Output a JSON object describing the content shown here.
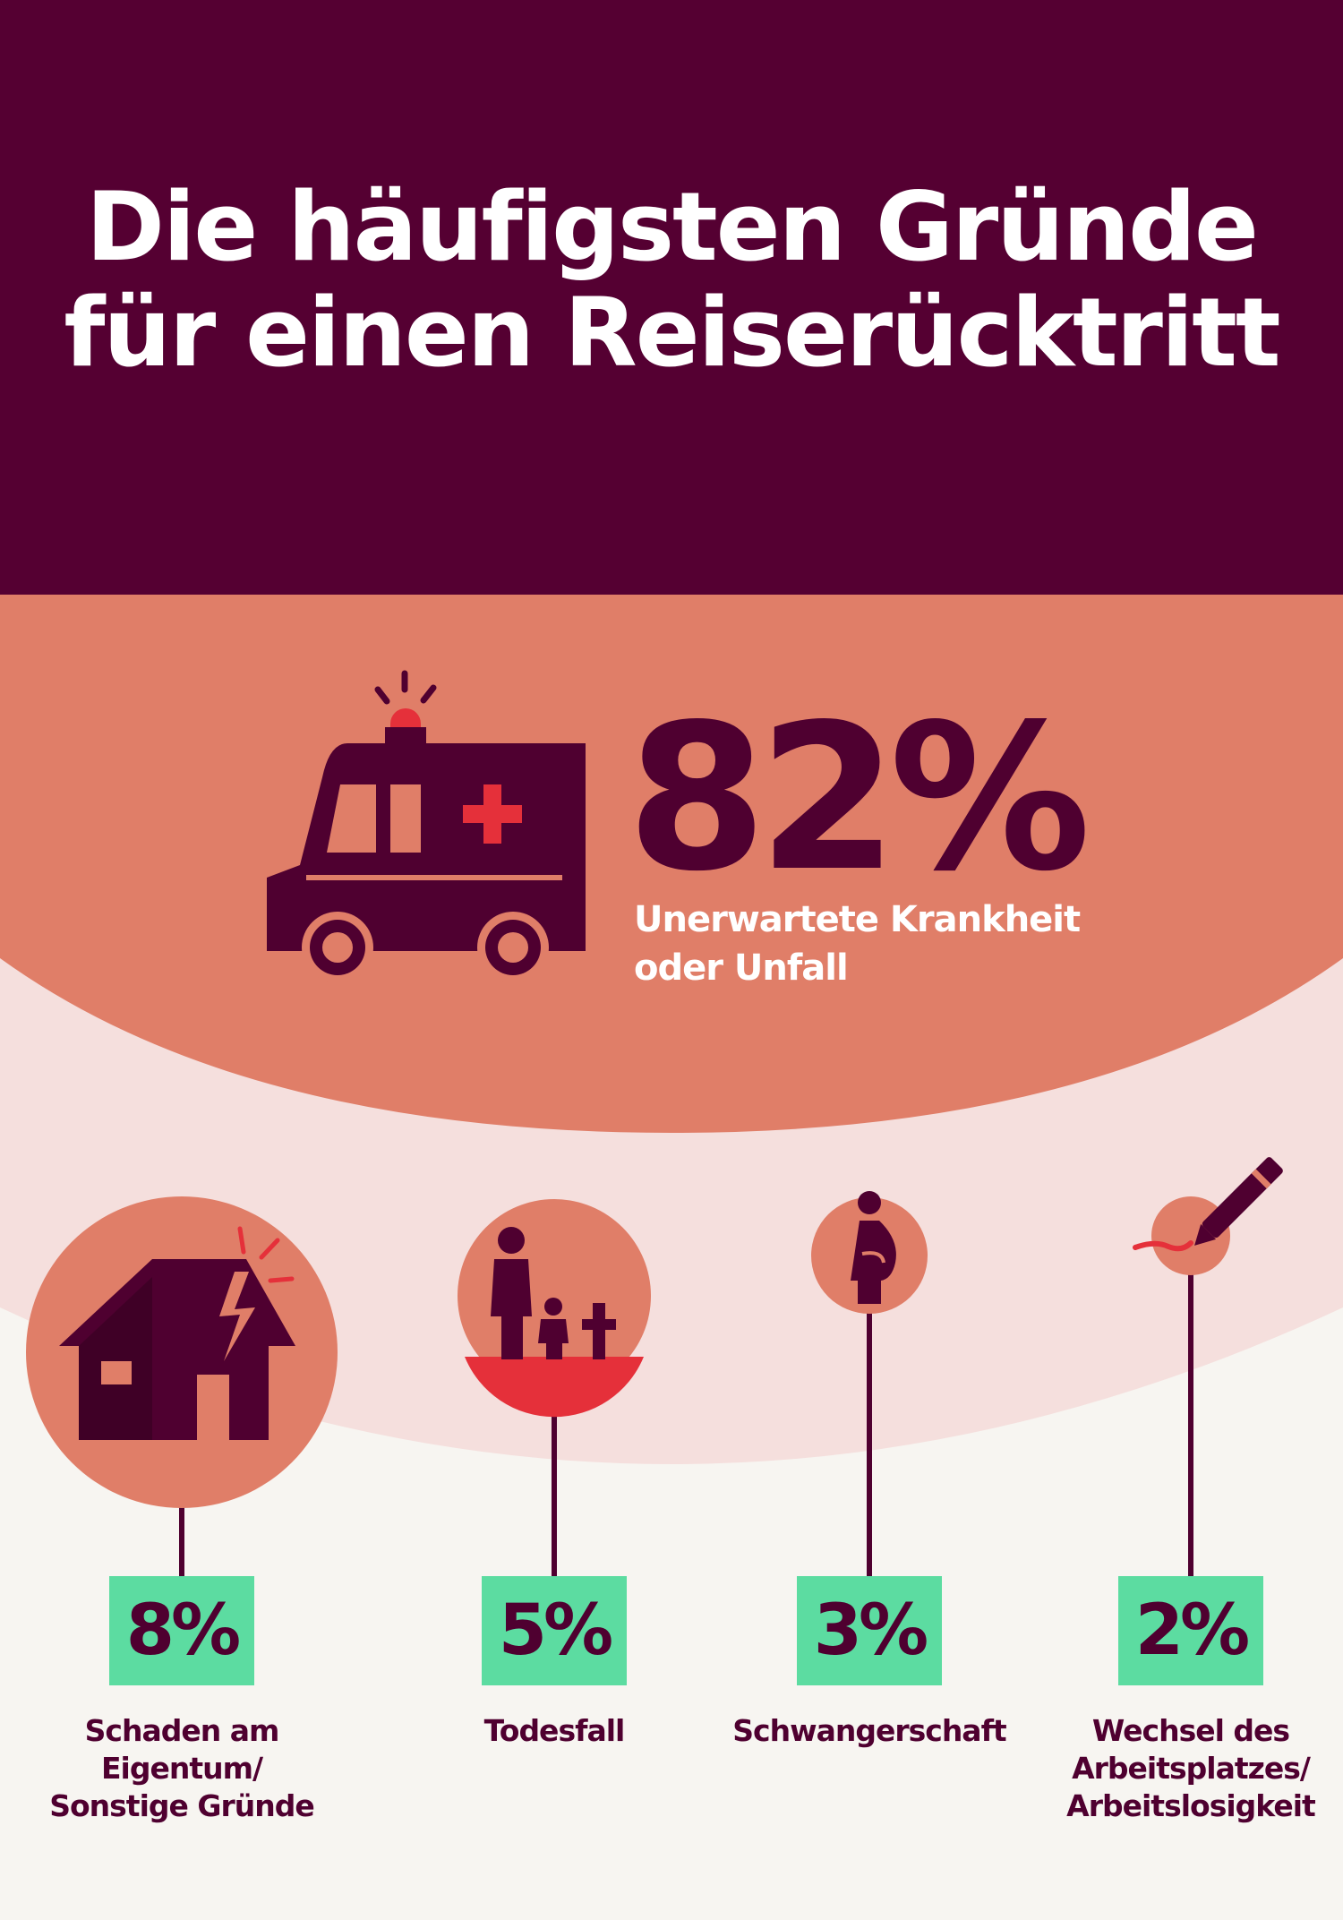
{
  "title": {
    "line1": "Die häufigsten Gründe",
    "line2": "für einen Reiserücktritt"
  },
  "colors": {
    "top_band": "#550032",
    "coral": "#e07e68",
    "pale_pink": "#f5dfdd",
    "background": "#f7f5f1",
    "dark": "#4f0030",
    "red_accent": "#e5303a",
    "badge": "#5cdca1"
  },
  "chart_data": {
    "type": "bar",
    "categories": [
      "Unerwartete Krankheit oder Unfall",
      "Schaden am Eigentum/ Sonstige Gründe",
      "Todesfall",
      "Schwangerschaft",
      "Wechsel des Arbeitsplatzes/ Arbeitslosigkeit"
    ],
    "values": [
      82,
      8,
      5,
      3,
      2
    ],
    "unit": "%"
  },
  "headline_stat": {
    "value": "82%",
    "label_line1": "Unerwartete Krankheit",
    "label_line2": "oder Unfall",
    "icon": "ambulance-icon"
  },
  "items": [
    {
      "value": "8%",
      "label_lines": [
        "Schaden am",
        "Eigentum/",
        "Sonstige Gründe"
      ],
      "icon": "damaged-house-icon"
    },
    {
      "value": "5%",
      "label_lines": [
        "Todesfall"
      ],
      "icon": "bereavement-icon"
    },
    {
      "value": "3%",
      "label_lines": [
        "Schwangerschaft"
      ],
      "icon": "pregnancy-icon"
    },
    {
      "value": "2%",
      "label_lines": [
        "Wechsel des",
        "Arbeitsplatzes/",
        "Arbeitslosigkeit"
      ],
      "icon": "pen-signature-icon"
    }
  ]
}
